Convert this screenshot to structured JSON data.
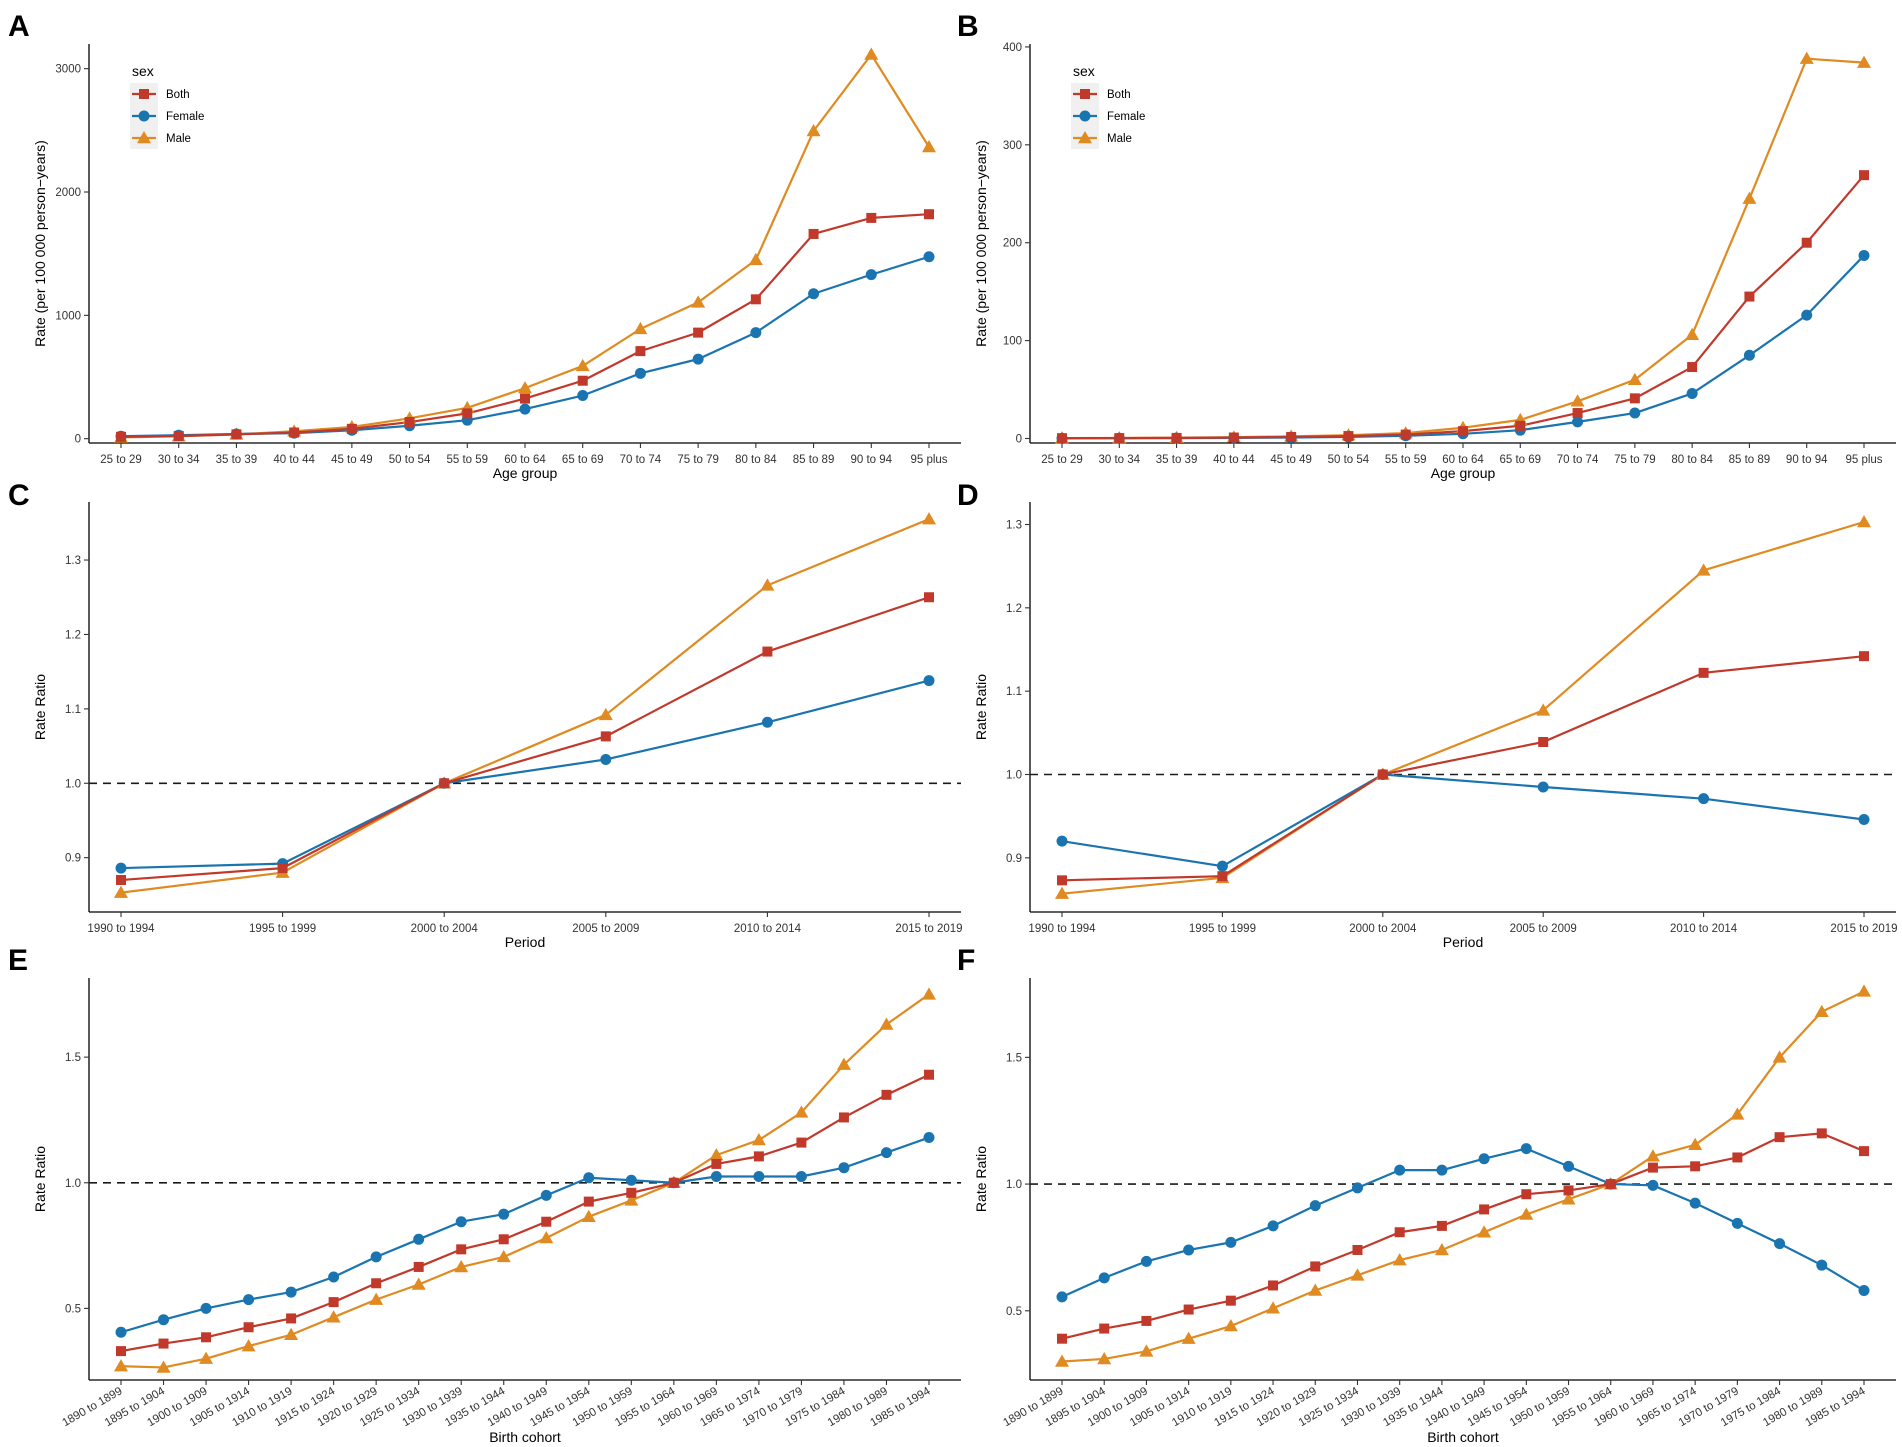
{
  "colors": {
    "Both": "#c0392b",
    "Female": "#1a74b0",
    "Male": "#e08a22",
    "reference_line": "#1a1a1a",
    "axis": "#000000"
  },
  "legend": {
    "title": "sex",
    "entries": [
      "Both",
      "Female",
      "Male"
    ]
  },
  "chart_data": [
    {
      "panel": "A",
      "type": "line",
      "xlabel": "Age group",
      "ylabel": "Rate (per 100 000 person−years)",
      "categories": [
        "25 to 29",
        "30 to 34",
        "35 to 39",
        "40 to 44",
        "45 to 49",
        "50 to 54",
        "55 to 59",
        "60 to 64",
        "65 to 69",
        "70 to 74",
        "75 to 79",
        "80 to 84",
        "85 to 89",
        "90 to 94",
        "95 plus"
      ],
      "ylim": [
        -35,
        3200
      ],
      "yticks": [
        0,
        1000,
        2000,
        3000
      ],
      "ytick_labels": [
        "0",
        "1000",
        "2000",
        "3000"
      ],
      "rotate_xticks": false,
      "show_legend": true,
      "reference_line": null,
      "series": [
        {
          "name": "Both",
          "marker": "square",
          "values": [
            15,
            22,
            35,
            50,
            80,
            135,
            205,
            325,
            470,
            710,
            860,
            1130,
            1660,
            1790,
            1820
          ]
        },
        {
          "name": "Female",
          "marker": "circle",
          "values": [
            20,
            28,
            38,
            45,
            68,
            105,
            150,
            240,
            350,
            530,
            645,
            860,
            1175,
            1330,
            1475
          ]
        },
        {
          "name": "Male",
          "marker": "triangle",
          "values": [
            10,
            20,
            35,
            60,
            95,
            165,
            250,
            410,
            590,
            890,
            1105,
            1450,
            2495,
            3115,
            2365
          ]
        }
      ]
    },
    {
      "panel": "B",
      "type": "line",
      "xlabel": "Age group",
      "ylabel": "Rate (per 100 000 person−years)",
      "categories": [
        "25 to 29",
        "30 to 34",
        "35 to 39",
        "40 to 44",
        "45 to 49",
        "50 to 54",
        "55 to 59",
        "60 to 64",
        "65 to 69",
        "70 to 74",
        "75 to 79",
        "80 to 84",
        "85 to 89",
        "90 to 94",
        "95 plus"
      ],
      "ylim": [
        -4.6,
        403
      ],
      "yticks": [
        0,
        100,
        200,
        300,
        400
      ],
      "ytick_labels": [
        "0",
        "100",
        "200",
        "300",
        "400"
      ],
      "rotate_xticks": false,
      "show_legend": true,
      "reference_line": null,
      "series": [
        {
          "name": "Both",
          "marker": "square",
          "values": [
            0.3,
            0.4,
            0.6,
            1.0,
            1.6,
            2.5,
            4.0,
            7.5,
            13,
            26,
            41,
            73,
            145,
            200,
            269
          ]
        },
        {
          "name": "Female",
          "marker": "circle",
          "values": [
            0.2,
            0.3,
            0.4,
            0.6,
            1.0,
            1.6,
            2.8,
            4.8,
            8.5,
            17,
            26,
            46,
            85,
            126,
            187
          ]
        },
        {
          "name": "Male",
          "marker": "triangle",
          "values": [
            0.4,
            0.5,
            0.8,
            1.3,
            2.2,
            3.4,
            5.5,
            11,
            19,
            38,
            60,
            106,
            245,
            388,
            384
          ]
        }
      ]
    },
    {
      "panel": "C",
      "type": "line",
      "xlabel": "Period",
      "ylabel": "Rate Ratio",
      "categories": [
        "1990 to 1994",
        "1995 to 1999",
        "2000 to 2004",
        "2005 to 2009",
        "2010 to 2014",
        "2015 to 2019"
      ],
      "ylim": [
        0.827,
        1.378
      ],
      "yticks": [
        0.9,
        1.0,
        1.1,
        1.2,
        1.3
      ],
      "ytick_labels": [
        "0.9",
        "1.0",
        "1.1",
        "1.2",
        "1.3"
      ],
      "rotate_xticks": false,
      "show_legend": false,
      "reference_line": 1.0,
      "series": [
        {
          "name": "Both",
          "marker": "square",
          "values": [
            0.87,
            0.886,
            1.0,
            1.063,
            1.177,
            1.25
          ]
        },
        {
          "name": "Female",
          "marker": "circle",
          "values": [
            0.886,
            0.892,
            1.0,
            1.032,
            1.082,
            1.138
          ]
        },
        {
          "name": "Male",
          "marker": "triangle",
          "values": [
            0.853,
            0.88,
            1.0,
            1.092,
            1.266,
            1.355
          ]
        }
      ]
    },
    {
      "panel": "D",
      "type": "line",
      "xlabel": "Period",
      "ylabel": "Rate Ratio",
      "categories": [
        "1990 to 1994",
        "1995 to 1999",
        "2000 to 2004",
        "2005 to 2009",
        "2010 to 2014",
        "2015 to 2019"
      ],
      "ylim": [
        0.835,
        1.327
      ],
      "yticks": [
        0.9,
        1.0,
        1.1,
        1.2,
        1.3
      ],
      "ytick_labels": [
        "0.9",
        "1.0",
        "1.1",
        "1.2",
        "1.3"
      ],
      "rotate_xticks": false,
      "show_legend": false,
      "reference_line": 1.0,
      "series": [
        {
          "name": "Both",
          "marker": "square",
          "values": [
            0.873,
            0.878,
            1.0,
            1.039,
            1.122,
            1.142
          ]
        },
        {
          "name": "Female",
          "marker": "circle",
          "values": [
            0.92,
            0.89,
            1.0,
            0.985,
            0.971,
            0.946
          ]
        },
        {
          "name": "Male",
          "marker": "triangle",
          "values": [
            0.857,
            0.876,
            1.0,
            1.077,
            1.245,
            1.303
          ]
        }
      ]
    },
    {
      "panel": "E",
      "type": "line",
      "xlabel": "Birth cohort",
      "ylabel": "Rate Ratio",
      "categories": [
        "1890 to 1899",
        "1895 to 1904",
        "1900 to 1909",
        "1905 to 1914",
        "1910 to 1919",
        "1915 to 1924",
        "1920 to 1929",
        "1925 to 1934",
        "1930 to 1939",
        "1935 to 1944",
        "1940 to 1949",
        "1945 to 1954",
        "1950 to 1959",
        "1955 to 1964",
        "1960 to 1969",
        "1965 to 1974",
        "1970 to 1979",
        "1975 to 1984",
        "1980 to 1989",
        "1985 to 1994"
      ],
      "ylim": [
        0.215,
        1.815
      ],
      "yticks": [
        0.5,
        1.0,
        1.5
      ],
      "ytick_labels": [
        "0.5",
        "1.0",
        "1.5"
      ],
      "rotate_xticks": true,
      "show_legend": false,
      "reference_line": 1.0,
      "series": [
        {
          "name": "Both",
          "marker": "square",
          "values": [
            0.33,
            0.36,
            0.385,
            0.425,
            0.46,
            0.525,
            0.6,
            0.665,
            0.735,
            0.775,
            0.845,
            0.925,
            0.96,
            1.0,
            1.075,
            1.105,
            1.16,
            1.26,
            1.35,
            1.43
          ]
        },
        {
          "name": "Female",
          "marker": "circle",
          "values": [
            0.405,
            0.455,
            0.5,
            0.535,
            0.565,
            0.625,
            0.705,
            0.775,
            0.845,
            0.875,
            0.95,
            1.02,
            1.01,
            1.0,
            1.025,
            1.025,
            1.025,
            1.06,
            1.12,
            1.18
          ]
        },
        {
          "name": "Male",
          "marker": "triangle",
          "values": [
            0.27,
            0.265,
            0.3,
            0.35,
            0.395,
            0.465,
            0.535,
            0.595,
            0.665,
            0.705,
            0.78,
            0.865,
            0.93,
            1.0,
            1.11,
            1.17,
            1.28,
            1.47,
            1.63,
            1.75
          ]
        }
      ]
    },
    {
      "panel": "F",
      "type": "line",
      "xlabel": "Birth cohort",
      "ylabel": "Rate Ratio",
      "categories": [
        "1890 to 1899",
        "1895 to 1904",
        "1900 to 1909",
        "1905 to 1914",
        "1910 to 1919",
        "1915 to 1924",
        "1920 to 1929",
        "1925 to 1934",
        "1930 to 1939",
        "1935 to 1944",
        "1940 to 1949",
        "1945 to 1954",
        "1950 to 1959",
        "1955 to 1964",
        "1960 to 1969",
        "1965 to 1974",
        "1970 to 1979",
        "1975 to 1984",
        "1980 to 1989",
        "1985 to 1994"
      ],
      "ylim": [
        0.227,
        1.813
      ],
      "yticks": [
        0.5,
        1.0,
        1.5
      ],
      "ytick_labels": [
        "0.5",
        "1.0",
        "1.5"
      ],
      "rotate_xticks": true,
      "show_legend": false,
      "reference_line": 1.0,
      "series": [
        {
          "name": "Both",
          "marker": "square",
          "values": [
            0.39,
            0.43,
            0.46,
            0.505,
            0.54,
            0.6,
            0.675,
            0.74,
            0.81,
            0.835,
            0.9,
            0.96,
            0.975,
            1.0,
            1.065,
            1.07,
            1.105,
            1.185,
            1.2,
            1.13
          ]
        },
        {
          "name": "Female",
          "marker": "circle",
          "values": [
            0.555,
            0.63,
            0.695,
            0.74,
            0.77,
            0.835,
            0.915,
            0.985,
            1.055,
            1.055,
            1.1,
            1.14,
            1.07,
            1.0,
            0.995,
            0.925,
            0.845,
            0.765,
            0.68,
            0.58
          ]
        },
        {
          "name": "Male",
          "marker": "triangle",
          "values": [
            0.3,
            0.31,
            0.34,
            0.39,
            0.44,
            0.51,
            0.58,
            0.64,
            0.7,
            0.74,
            0.81,
            0.88,
            0.94,
            1.0,
            1.11,
            1.155,
            1.275,
            1.5,
            1.68,
            1.76
          ]
        }
      ]
    }
  ]
}
